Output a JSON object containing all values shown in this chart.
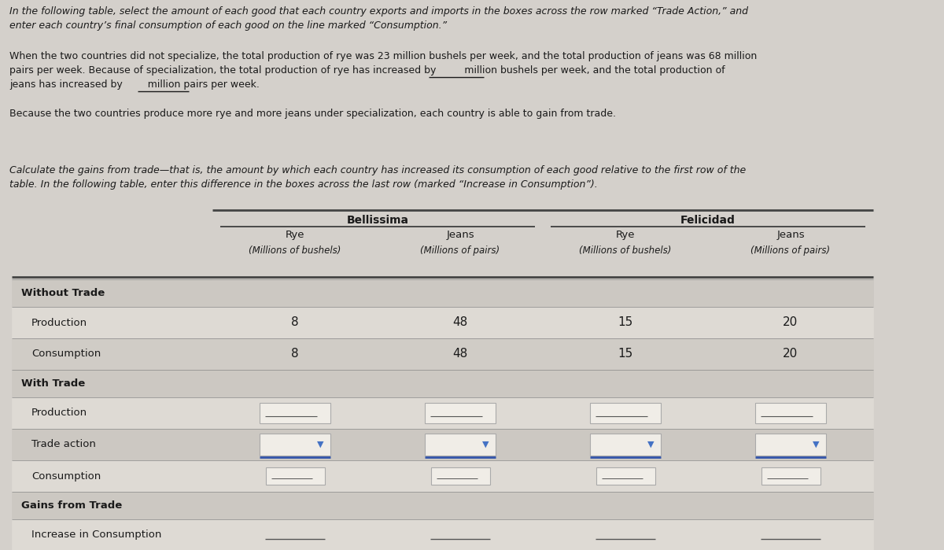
{
  "bg_color": "#d4d0cb",
  "row_header_bg": "#c8c4be",
  "row_light_bg": "#dedad4",
  "row_white_bg": "#eae7e1",
  "text_color": "#1a1a1a",
  "blue_arrow": "#4472c4",
  "line_color": "#555555",
  "blue_line_color": "#3355aa",
  "paragraph1_line1": "In the following table, select the amount of each good that each country exports and imports in the boxes across the row marked “Trade Action,” and",
  "paragraph1_line2": "enter each country’s final consumption of each good on the line marked “Consumption.”",
  "paragraph2_line1": "When the two countries did not specialize, the total production of rye was 23 million bushels per week, and the total production of jeans was 68 million",
  "paragraph2_line2": "pairs per week. Because of specialization, the total production of rye has increased by         million bushels per week, and the total production of",
  "paragraph2_line3": "jeans has increased by        million pairs per week.",
  "paragraph3": "Because the two countries produce more rye and more jeans under specialization, each country is able to gain from trade.",
  "paragraph4_line1": "Calculate the gains from trade—that is, the amount by which each country has increased its consumption of each good relative to the first row of the",
  "paragraph4_line2": "table. In the following table, enter this difference in the boxes across the last row (marked “Increase in Consumption”).",
  "col_header1": "Bellissima",
  "col_header2": "Felicidad",
  "sub_headers": [
    "Rye",
    "Jeans",
    "Rye",
    "Jeans"
  ],
  "units": [
    "(Millions of bushels)",
    "(Millions of pairs)",
    "(Millions of bushels)",
    "(Millions of pairs)"
  ],
  "row_labels": [
    "Without Trade",
    "Production",
    "Consumption",
    "With Trade",
    "Production",
    "Trade action",
    "Consumption",
    "Gains from Trade",
    "Increase in Consumption"
  ],
  "row_is_header": [
    true,
    false,
    false,
    true,
    false,
    false,
    false,
    true,
    false
  ],
  "row_indent": [
    false,
    true,
    true,
    false,
    true,
    true,
    true,
    false,
    true
  ],
  "values_prod": [
    "8",
    "48",
    "15",
    "20"
  ],
  "values_cons": [
    "8",
    "48",
    "15",
    "20"
  ]
}
